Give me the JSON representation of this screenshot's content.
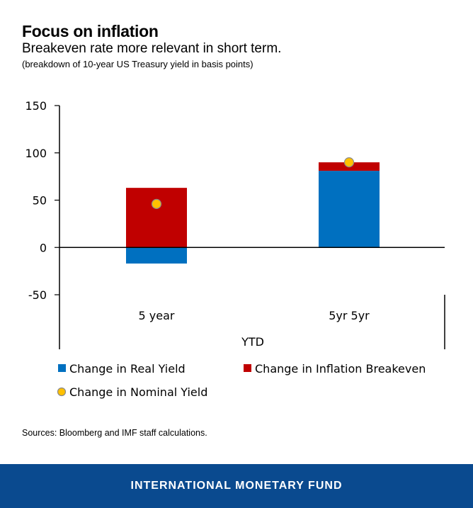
{
  "header": {
    "title": "Focus on inflation",
    "subtitle": "Breakeven rate more relevant in short term.",
    "note": "(breakdown of 10-year US Treasury yield in basis points)"
  },
  "chart_data": {
    "type": "bar",
    "stacked": true,
    "categories": [
      "5 year",
      "5yr 5yr"
    ],
    "xlabel": "YTD",
    "ylabel": "",
    "ylim": [
      -50,
      150
    ],
    "yticks": [
      150,
      100,
      50,
      0,
      -50
    ],
    "series": [
      {
        "name": "Change in Real Yield",
        "kind": "bar",
        "color": "#0070c0",
        "values": [
          -17,
          81
        ]
      },
      {
        "name": "Change in Inflation Breakeven",
        "kind": "bar",
        "color": "#c00000",
        "values": [
          63,
          9
        ]
      },
      {
        "name": "Change in Nominal Yield",
        "kind": "marker",
        "color": "#ffc000",
        "values": [
          46,
          90
        ]
      }
    ]
  },
  "source": "Sources: Bloomberg and IMF staff calculations.",
  "footer": {
    "label": "INTERNATIONAL MONETARY FUND",
    "background": "#0a4a8f"
  }
}
